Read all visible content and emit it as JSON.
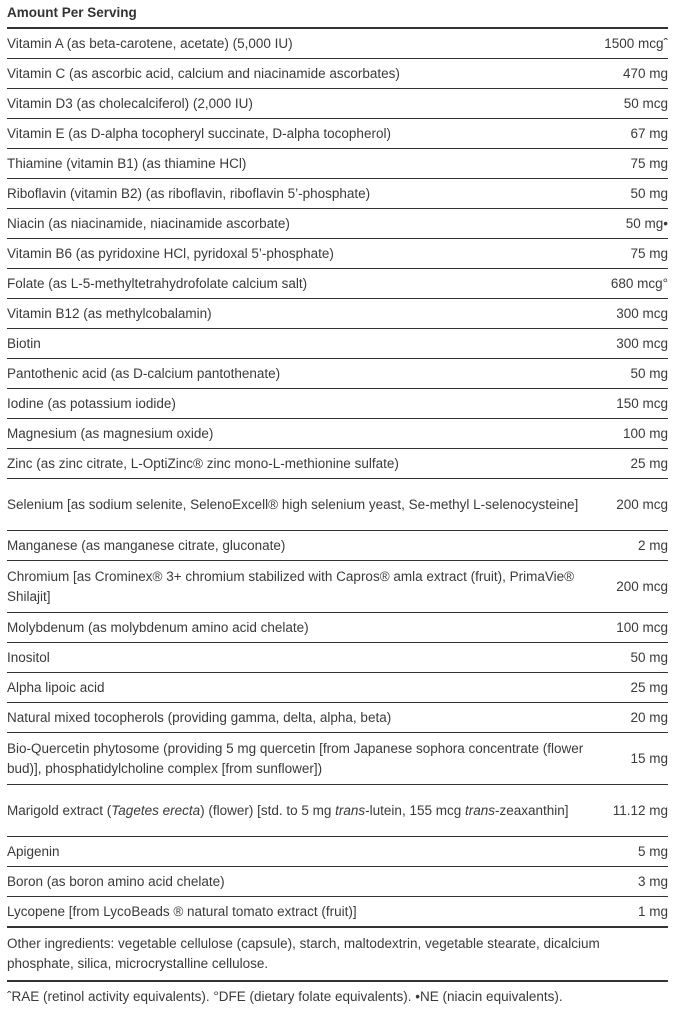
{
  "header": "Amount Per Serving",
  "rows": [
    {
      "name": [
        {
          "t": "Vitamin A (as beta-carotene, acetate) (5,000 IU)"
        }
      ],
      "amount": "1500 mcgˆ"
    },
    {
      "name": [
        {
          "t": "Vitamin C (as ascorbic acid, calcium and niacinamide ascorbates)"
        }
      ],
      "amount": "470 mg"
    },
    {
      "name": [
        {
          "t": "Vitamin D3 (as cholecalciferol) (2,000 IU)"
        }
      ],
      "amount": "50 mcg"
    },
    {
      "name": [
        {
          "t": "Vitamin E (as D-alpha tocopheryl succinate, D-alpha tocopherol)"
        }
      ],
      "amount": "67 mg"
    },
    {
      "name": [
        {
          "t": "Thiamine (vitamin B1) (as thiamine HCl)"
        }
      ],
      "amount": "75 mg"
    },
    {
      "name": [
        {
          "t": "Riboflavin (vitamin B2) (as riboflavin, riboflavin 5’-phosphate)"
        }
      ],
      "amount": "50 mg"
    },
    {
      "name": [
        {
          "t": "Niacin (as niacinamide, niacinamide ascorbate)"
        }
      ],
      "amount": "50 mg•"
    },
    {
      "name": [
        {
          "t": "Vitamin B6 (as pyridoxine HCl, pyridoxal 5’-phosphate)"
        }
      ],
      "amount": "75 mg"
    },
    {
      "name": [
        {
          "t": "Folate (as L-5-methyltetrahydrofolate calcium salt)"
        }
      ],
      "amount": "680 mcg°"
    },
    {
      "name": [
        {
          "t": "Vitamin B12 (as methylcobalamin)"
        }
      ],
      "amount": "300 mcg"
    },
    {
      "name": [
        {
          "t": "Biotin"
        }
      ],
      "amount": "300 mcg"
    },
    {
      "name": [
        {
          "t": "Pantothenic acid (as D-calcium pantothenate)"
        }
      ],
      "amount": "50 mg"
    },
    {
      "name": [
        {
          "t": "Iodine (as potassium iodide)"
        }
      ],
      "amount": "150 mcg"
    },
    {
      "name": [
        {
          "t": "Magnesium (as magnesium oxide)"
        }
      ],
      "amount": "100 mg"
    },
    {
      "name": [
        {
          "t": "Zinc (as zinc citrate, L-OptiZinc® zinc mono-L-methionine sulfate)"
        }
      ],
      "amount": "25 mg"
    },
    {
      "name": [
        {
          "t": "Selenium [as sodium selenite, SelenoExcell® high selenium yeast, Se-methyl L-selenocysteine]"
        }
      ],
      "amount": "200 mcg",
      "two": true
    },
    {
      "name": [
        {
          "t": "Manganese (as manganese citrate, gluconate)"
        }
      ],
      "amount": "2 mg"
    },
    {
      "name": [
        {
          "t": "Chromium [as Crominex® 3+ chromium stabilized with Capros® amla extract (fruit), PrimaVie® Shilajit]"
        }
      ],
      "amount": "200 mcg",
      "two": true
    },
    {
      "name": [
        {
          "t": "Molybdenum (as molybdenum amino acid chelate)"
        }
      ],
      "amount": "100 mcg"
    },
    {
      "name": [
        {
          "t": "Inositol"
        }
      ],
      "amount": "50 mg"
    },
    {
      "name": [
        {
          "t": "Alpha lipoic acid"
        }
      ],
      "amount": "25 mg"
    },
    {
      "name": [
        {
          "t": "Natural mixed tocopherols (providing gamma, delta, alpha, beta)"
        }
      ],
      "amount": "20 mg"
    },
    {
      "name": [
        {
          "t": "Bio-Quercetin phytosome (providing 5 mg quercetin [from Japanese sophora concentrate (flower bud)], phosphatidylcholine complex [from sunflower])"
        }
      ],
      "amount": "15 mg",
      "two": true
    },
    {
      "name": [
        {
          "t": "Marigold extract ("
        },
        {
          "t": "Tagetes erecta",
          "i": true
        },
        {
          "t": ") (flower) [std. to 5 mg "
        },
        {
          "t": "trans",
          "i": true
        },
        {
          "t": "-lutein, 155 mcg "
        },
        {
          "t": "trans",
          "i": true
        },
        {
          "t": "-zeaxanthin]"
        }
      ],
      "amount": "11.12 mg",
      "two": true
    },
    {
      "name": [
        {
          "t": "Apigenin"
        }
      ],
      "amount": "5 mg"
    },
    {
      "name": [
        {
          "t": "Boron (as boron amino acid chelate)"
        }
      ],
      "amount": "3 mg"
    },
    {
      "name": [
        {
          "t": "Lycopene [from LycoBeads ® natural tomato extract (fruit)]"
        }
      ],
      "amount": "1 mg"
    }
  ],
  "other_ingredients": "Other ingredients: vegetable cellulose (capsule), starch, maltodextrin, vegetable stearate, dicalcium phosphate, silica, microcrystalline cellulose.",
  "footnote": "ˆRAE (retinol activity equivalents). °DFE (dietary folate equivalents). •NE (niacin equivalents)."
}
